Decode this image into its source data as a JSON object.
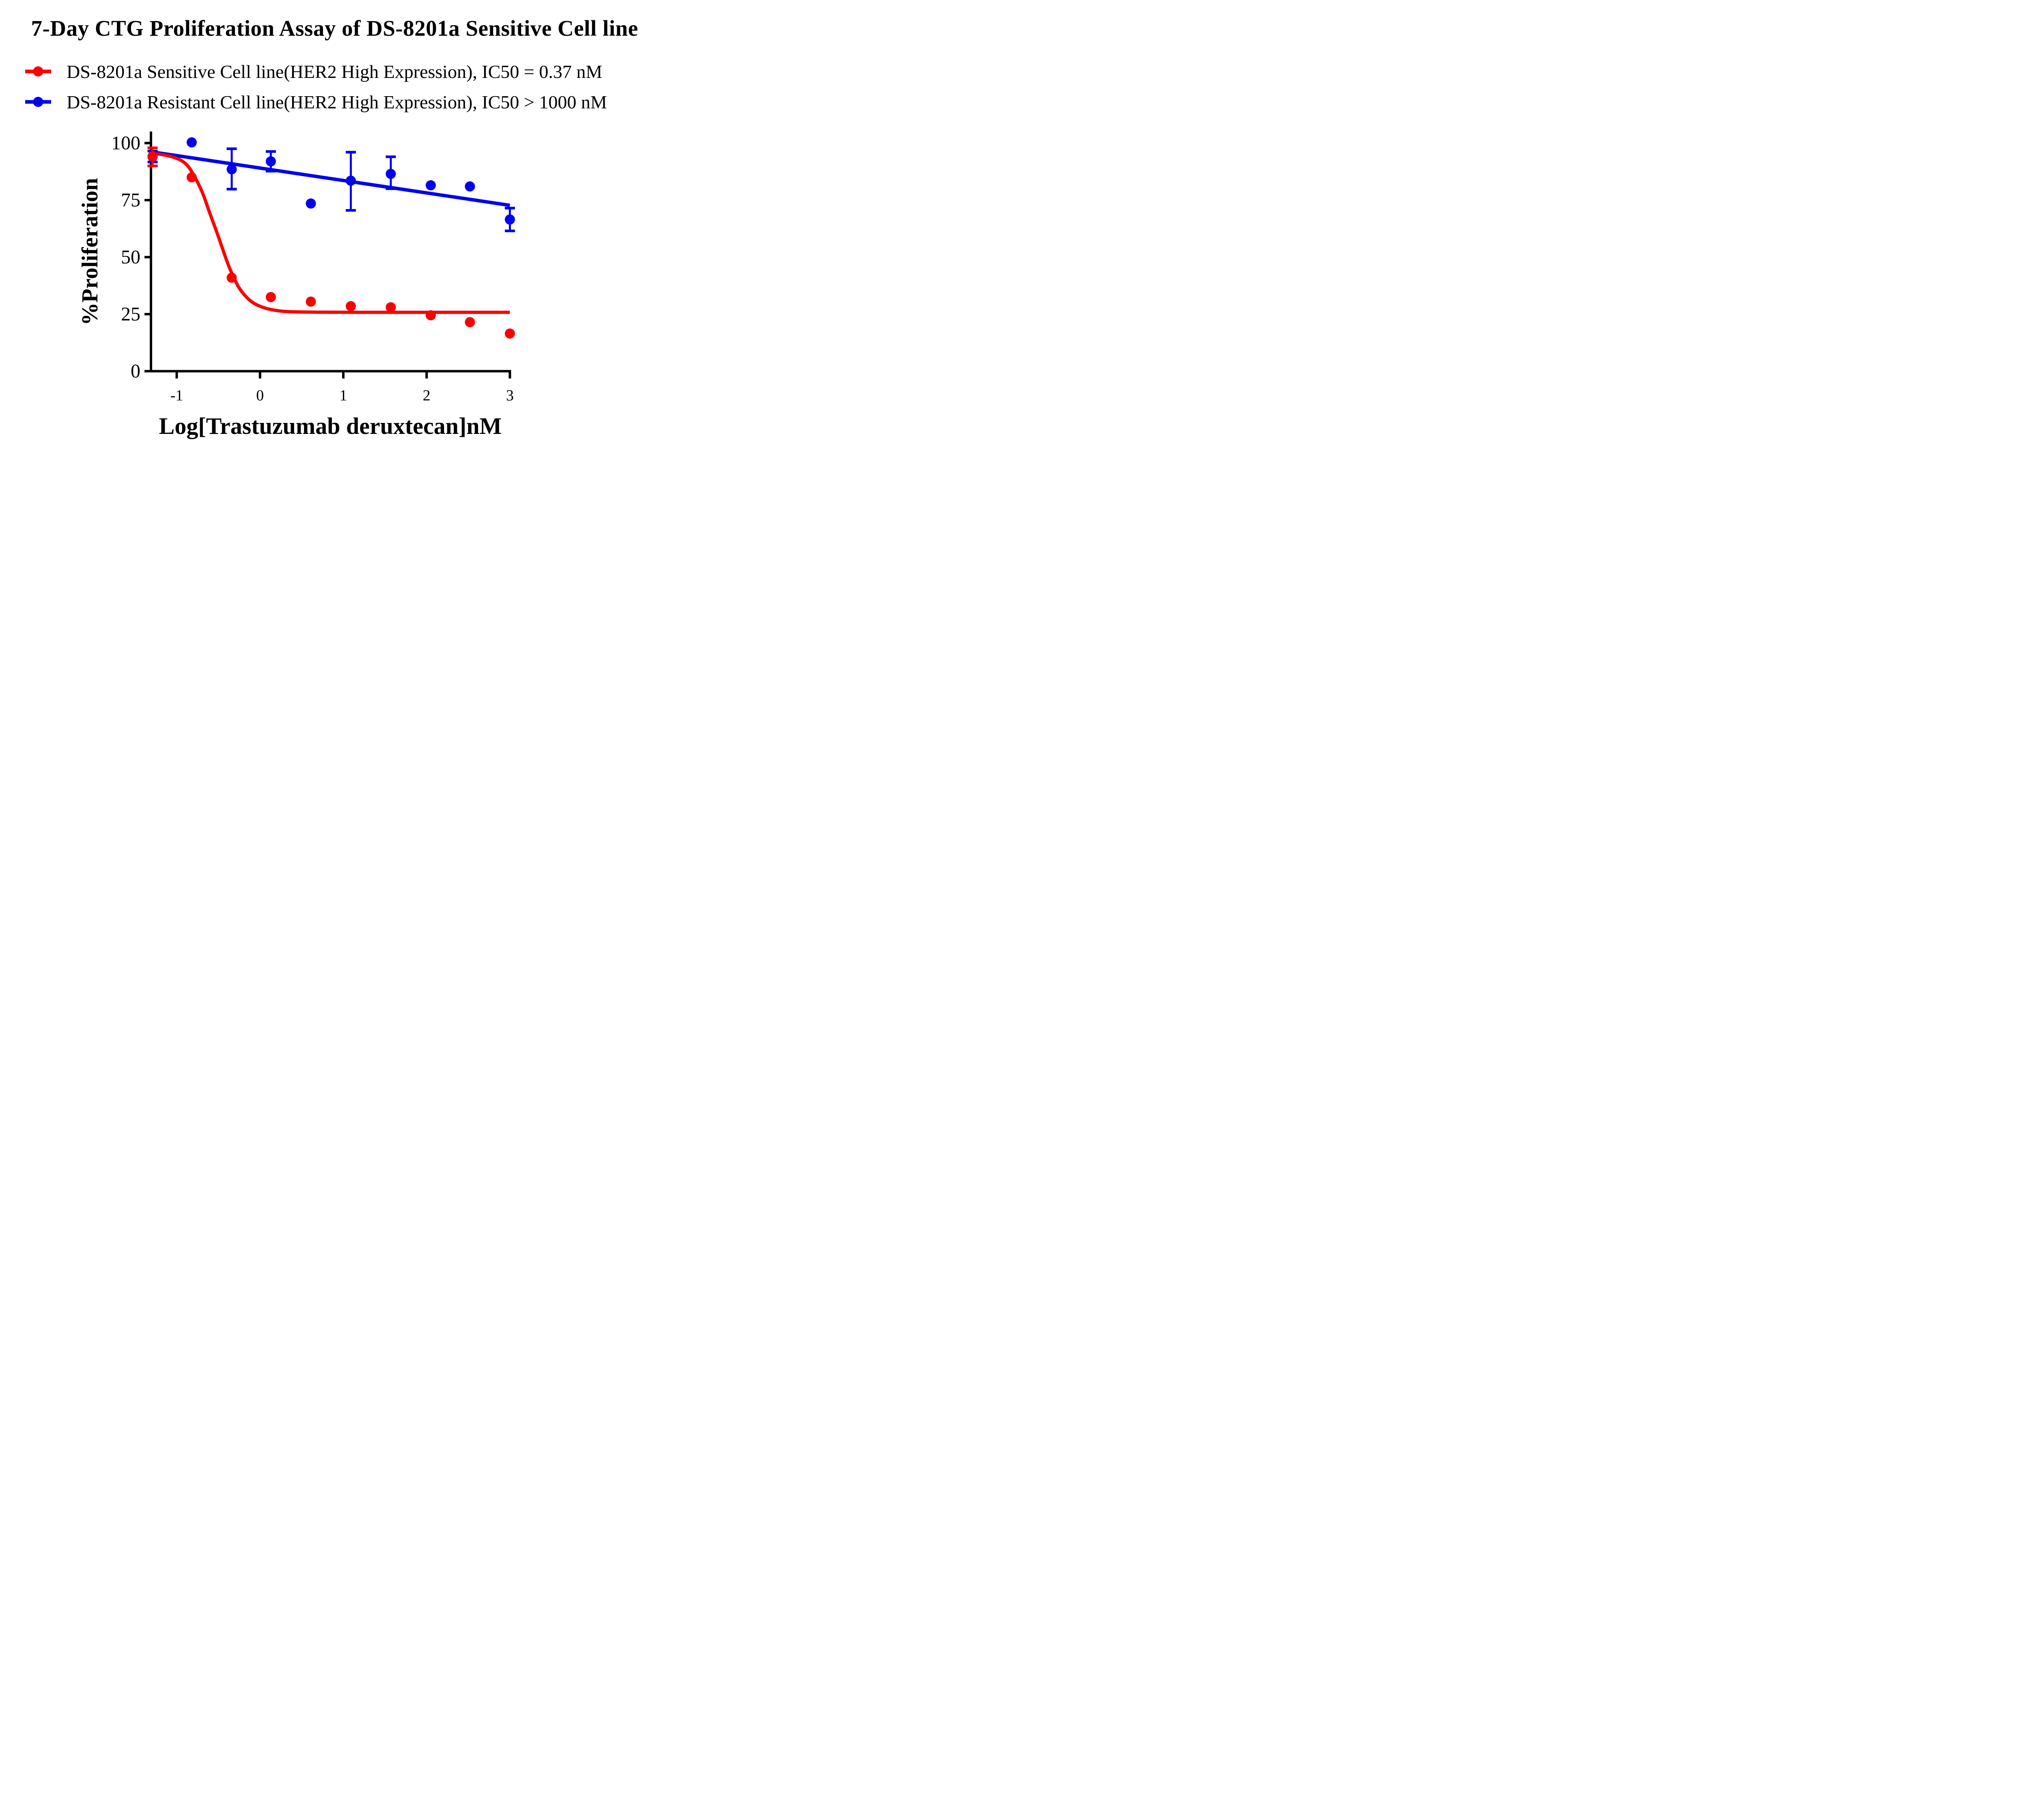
{
  "chart_data": {
    "type": "scatter",
    "title": "7-Day CTG Proliferation Assay of DS-8201a Sensitive Cell line",
    "xlabel": "Log[Trastuzumab deruxtecan]nM",
    "ylabel": "%Proliferation",
    "x_ticks": [
      -1,
      0,
      1,
      2,
      3
    ],
    "y_ticks": [
      0,
      25,
      50,
      75,
      100
    ],
    "xlim": [
      -1.31,
      3.0
    ],
    "ylim": [
      0,
      105
    ],
    "grid": false,
    "legend_position": "top-left",
    "series": [
      {
        "name": "DS-8201a Resistant Cell line(HER2 High Expression)",
        "ic50": "IC50 > 1000 nM",
        "color": "#0000f0",
        "marker": "circle",
        "x": [
          -1.29,
          -0.82,
          -0.34,
          0.13,
          0.61,
          1.09,
          1.57,
          2.05,
          2.52,
          3.0
        ],
        "y": [
          94.0,
          100.3,
          88.5,
          92.0,
          73.5,
          83.5,
          86.5,
          81.5,
          81.0,
          66.5
        ],
        "err_minus": [
          2.3,
          null,
          8.7,
          4.3,
          null,
          13.0,
          6.5,
          null,
          null,
          5.0
        ],
        "err_plus": [
          2.5,
          null,
          9.0,
          4.3,
          null,
          12.5,
          7.5,
          null,
          null,
          5.0
        ],
        "trend_line": [
          [
            -1.31,
            96.2
          ],
          [
            3.0,
            72.7
          ]
        ]
      },
      {
        "name": "DS-8201a Sensitive Cell line(HER2 High Expression)",
        "ic50": "IC50 = 0.37 nM",
        "color": "#fa0000",
        "marker": "circle",
        "x": [
          -1.29,
          -0.82,
          -0.34,
          0.13,
          0.61,
          1.09,
          1.57,
          2.05,
          2.52,
          3.0
        ],
        "y": [
          94.2,
          85.0,
          41.0,
          32.5,
          30.5,
          28.5,
          28.0,
          24.5,
          21.5,
          16.5
        ],
        "err_minus": [
          4.2,
          null,
          null,
          null,
          null,
          null,
          null,
          null,
          null,
          null
        ],
        "err_plus": [
          3.7,
          null,
          null,
          null,
          null,
          null,
          null,
          null,
          null,
          null
        ],
        "fit_curve": [
          [
            -1.31,
            95.5
          ],
          [
            -1.15,
            94.8
          ],
          [
            -1.0,
            93.3
          ],
          [
            -0.9,
            91.2
          ],
          [
            -0.82,
            87.5
          ],
          [
            -0.7,
            79.0
          ],
          [
            -0.6,
            69.0
          ],
          [
            -0.5,
            59.0
          ],
          [
            -0.4,
            48.5
          ],
          [
            -0.34,
            43.0
          ],
          [
            -0.25,
            36.5
          ],
          [
            -0.15,
            32.0
          ],
          [
            -0.05,
            29.3
          ],
          [
            0.1,
            27.3
          ],
          [
            0.3,
            26.2
          ],
          [
            0.6,
            25.9
          ],
          [
            1.2,
            25.8
          ],
          [
            3.0,
            25.8
          ]
        ]
      }
    ]
  },
  "legend": {
    "items": [
      {
        "label": "DS-8201a Sensitive Cell line(HER2 High Expression), IC50 = 0.37 nM",
        "color": "#fa0000"
      },
      {
        "label": "DS-8201a Resistant Cell line(HER2 High Expression), IC50 > 1000 nM",
        "color": "#0000f0"
      }
    ]
  }
}
